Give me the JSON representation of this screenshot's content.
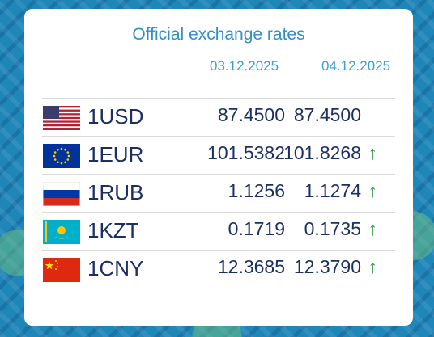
{
  "title": "Official exchange rates",
  "dates": [
    "03.12.2025",
    "04.12.2025"
  ],
  "colors": {
    "accent": "#2f8fc8",
    "text": "#1c2e63",
    "up": "#2e9a4a"
  },
  "rates": [
    {
      "code": "1USD",
      "flag": "us-flag-icon",
      "prev": "87.4500",
      "curr": "87.4500",
      "trend": ""
    },
    {
      "code": "1EUR",
      "flag": "eu-flag-icon",
      "prev": "101.5382",
      "curr": "101.8268",
      "trend": "↑"
    },
    {
      "code": "1RUB",
      "flag": "ru-flag-icon",
      "prev": "1.1256",
      "curr": "1.1274",
      "trend": "↑"
    },
    {
      "code": "1KZT",
      "flag": "kz-flag-icon",
      "prev": "0.1719",
      "curr": "0.1735",
      "trend": "↑"
    },
    {
      "code": "1CNY",
      "flag": "cn-flag-icon",
      "prev": "12.3685",
      "curr": "12.3790",
      "trend": "↑"
    }
  ]
}
